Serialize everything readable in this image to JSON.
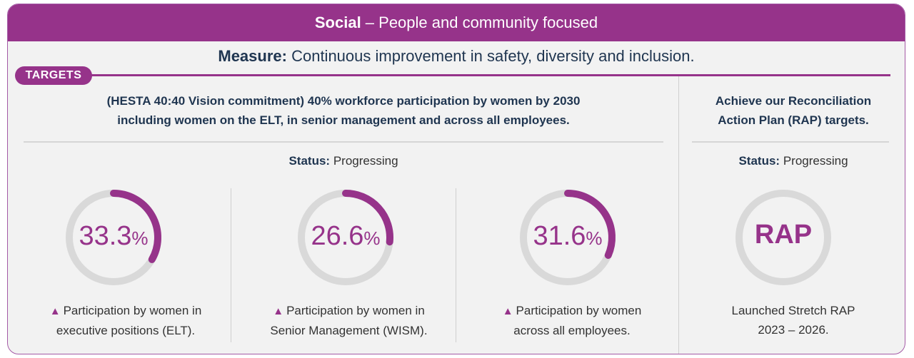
{
  "header": {
    "title_bold": "Social",
    "title_rest": " – People and community focused"
  },
  "measure": {
    "label": "Measure:",
    "text": " Continuous improvement in safety, diversity and inclusion."
  },
  "targets_label": "TARGETS",
  "left_target": {
    "line1": "(HESTA 40:40 Vision commitment) 40% workforce participation by women by 2030",
    "line2": "including women on the ELT, in senior management and across all employees.",
    "status_label": "Status:",
    "status_value": " Progressing"
  },
  "right_target": {
    "line1": "Achieve our Reconciliation",
    "line2": "Action Plan (RAP) targets.",
    "status_label": "Status:",
    "status_value": " Progressing"
  },
  "colors": {
    "accent": "#96338a",
    "track": "#d9d9d9",
    "text_dark": "#1f3550"
  },
  "chart_data": {
    "type": "pie",
    "title": "",
    "series": [
      {
        "name": "ELT",
        "value": 33.3,
        "value_label": "33.3",
        "unit": "%",
        "caption1": "Participation by women in",
        "caption2": "executive positions (ELT).",
        "trend": "up"
      },
      {
        "name": "WISM",
        "value": 26.6,
        "value_label": "26.6",
        "unit": "%",
        "caption1": "Participation by women in",
        "caption2": "Senior Management (WISM).",
        "trend": "up"
      },
      {
        "name": "All employees",
        "value": 31.6,
        "value_label": "31.6",
        "unit": "%",
        "caption1": "Participation by women",
        "caption2": "across all employees.",
        "trend": "up"
      }
    ],
    "max": 100
  },
  "rap": {
    "label": "RAP",
    "caption1": "Launched Stretch RAP",
    "caption2": "2023 – 2026."
  }
}
